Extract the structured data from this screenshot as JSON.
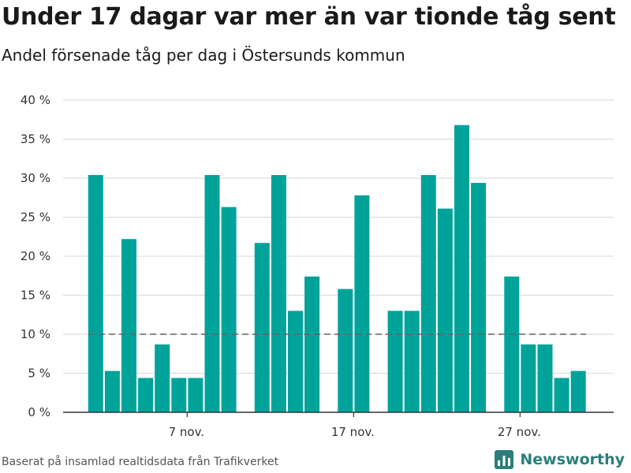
{
  "title": "Under 17 dagar var mer än var tionde tåg sent",
  "subtitle": "Andel försenade tåg per dag i Östersunds kommun",
  "source": "Baserat på insamlad realtidsdata från Trafikverket",
  "brand": "Newsworthy",
  "colors": {
    "bar": "#00a39a",
    "reference_line": "#666666",
    "grid": "#dddddd",
    "brand": "#2a7f7a"
  },
  "chart_data": {
    "type": "bar",
    "x_start": "2020-11-01",
    "x_end": "2020-11-30",
    "x_ticks": [
      {
        "date": "2020-11-07",
        "label": "7 nov."
      },
      {
        "date": "2020-11-17",
        "label": "17 nov."
      },
      {
        "date": "2020-11-27",
        "label": "27 nov."
      }
    ],
    "y_ticks": [
      "0 %",
      "5 %",
      "10 %",
      "15 %",
      "20 %",
      "25 %",
      "30 %",
      "35 %",
      "40 %"
    ],
    "ylim": [
      0,
      40
    ],
    "reference_line": 10,
    "grid": true,
    "data": [
      {
        "date": "2020-11-02",
        "value": 30.4
      },
      {
        "date": "2020-11-03",
        "value": 5.3
      },
      {
        "date": "2020-11-04",
        "value": 22.2
      },
      {
        "date": "2020-11-05",
        "value": 4.4
      },
      {
        "date": "2020-11-06",
        "value": 8.7
      },
      {
        "date": "2020-11-07",
        "value": 4.4
      },
      {
        "date": "2020-11-08",
        "value": 4.4
      },
      {
        "date": "2020-11-09",
        "value": 30.4
      },
      {
        "date": "2020-11-10",
        "value": 26.3
      },
      {
        "date": "2020-11-12",
        "value": 21.7
      },
      {
        "date": "2020-11-13",
        "value": 30.4
      },
      {
        "date": "2020-11-14",
        "value": 13.0
      },
      {
        "date": "2020-11-15",
        "value": 17.4
      },
      {
        "date": "2020-11-17",
        "value": 15.8
      },
      {
        "date": "2020-11-18",
        "value": 27.8
      },
      {
        "date": "2020-11-20",
        "value": 13.0
      },
      {
        "date": "2020-11-21",
        "value": 13.0
      },
      {
        "date": "2020-11-22",
        "value": 30.4
      },
      {
        "date": "2020-11-23",
        "value": 26.1
      },
      {
        "date": "2020-11-24",
        "value": 36.8
      },
      {
        "date": "2020-11-25",
        "value": 29.4
      },
      {
        "date": "2020-11-27",
        "value": 17.4
      },
      {
        "date": "2020-11-28",
        "value": 8.7
      },
      {
        "date": "2020-11-29",
        "value": 8.7
      },
      {
        "date": "2020-11-30",
        "value": 4.4
      },
      {
        "date": "2020-12-01",
        "value": 5.3
      }
    ]
  }
}
